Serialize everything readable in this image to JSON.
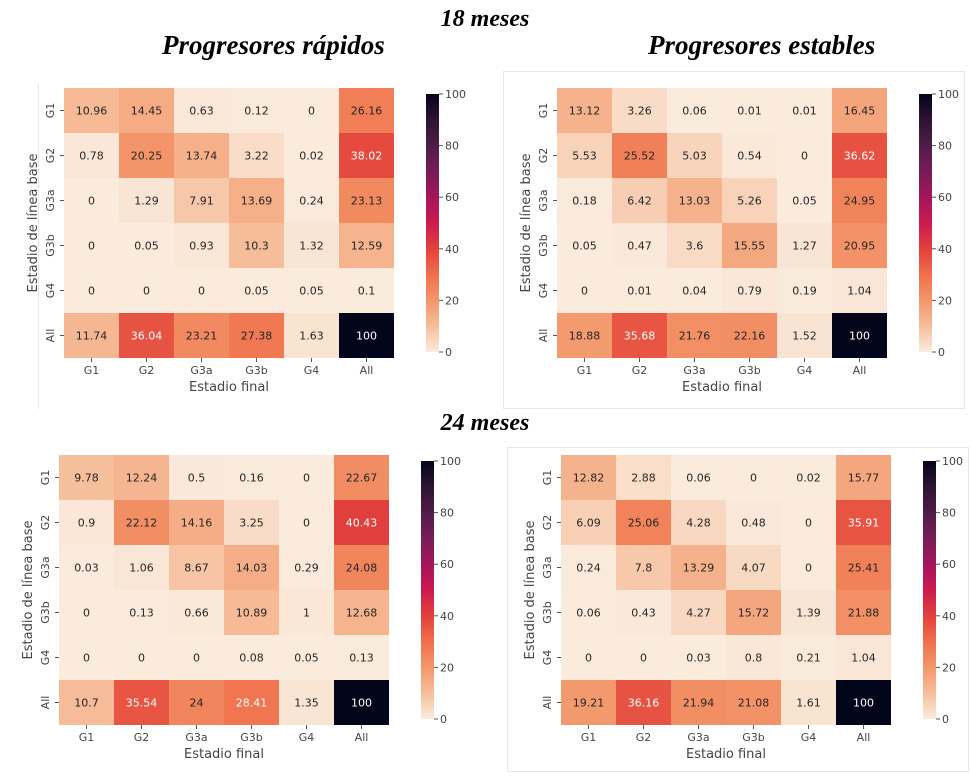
{
  "titles": {
    "top": "18 meses",
    "bottom": "24 meses",
    "left_panel": "Progresores rápidos",
    "right_panel": "Progresores estables"
  },
  "chart_data": [
    {
      "type": "heatmap",
      "id": "18m-rapidos",
      "period": "18 meses",
      "title": "Progresores rápidos",
      "xlabel": "Estadio final",
      "ylabel": "Estadio de línea base",
      "x_categories": [
        "G1",
        "G2",
        "G3a",
        "G3b",
        "G4",
        "All"
      ],
      "y_categories": [
        "G1",
        "G2",
        "G3a",
        "G3b",
        "G4",
        "All"
      ],
      "values": [
        [
          10.96,
          14.45,
          0.63,
          0.12,
          0,
          26.16
        ],
        [
          0.78,
          20.25,
          13.74,
          3.22,
          0.02,
          38.02
        ],
        [
          0,
          1.29,
          7.91,
          13.69,
          0.24,
          23.13
        ],
        [
          0,
          0.05,
          0.93,
          10.3,
          1.32,
          12.59
        ],
        [
          0,
          0,
          0,
          0.05,
          0.05,
          0.1
        ],
        [
          11.74,
          36.04,
          23.21,
          27.38,
          1.63,
          100
        ]
      ],
      "colorbar": {
        "range": [
          0,
          100
        ],
        "ticks": [
          0,
          20,
          40,
          60,
          80,
          100
        ],
        "colormap": "rocket_r"
      }
    },
    {
      "type": "heatmap",
      "id": "18m-estables",
      "period": "18 meses",
      "title": "Progresores estables",
      "xlabel": "Estadio final",
      "ylabel": "Estadio de línea base",
      "x_categories": [
        "G1",
        "G2",
        "G3a",
        "G3b",
        "G4",
        "All"
      ],
      "y_categories": [
        "G1",
        "G2",
        "G3a",
        "G3b",
        "G4",
        "All"
      ],
      "values": [
        [
          13.12,
          3.26,
          0.06,
          0.01,
          0.01,
          16.45
        ],
        [
          5.53,
          25.52,
          5.03,
          0.54,
          0,
          36.62
        ],
        [
          0.18,
          6.42,
          13.03,
          5.26,
          0.05,
          24.95
        ],
        [
          0.05,
          0.47,
          3.6,
          15.55,
          1.27,
          20.95
        ],
        [
          0,
          0.01,
          0.04,
          0.79,
          0.19,
          1.04
        ],
        [
          18.88,
          35.68,
          21.76,
          22.16,
          1.52,
          100
        ]
      ],
      "colorbar": {
        "range": [
          0,
          100
        ],
        "ticks": [
          0,
          20,
          40,
          60,
          80,
          100
        ],
        "colormap": "rocket_r"
      }
    },
    {
      "type": "heatmap",
      "id": "24m-rapidos",
      "period": "24 meses",
      "title": "Progresores rápidos",
      "xlabel": "Estadio final",
      "ylabel": "Estadio de línea base",
      "x_categories": [
        "G1",
        "G2",
        "G3a",
        "G3b",
        "G4",
        "All"
      ],
      "y_categories": [
        "G1",
        "G2",
        "G3a",
        "G3b",
        "G4",
        "All"
      ],
      "values": [
        [
          9.78,
          12.24,
          0.5,
          0.16,
          0,
          22.67
        ],
        [
          0.9,
          22.12,
          14.16,
          3.25,
          0,
          40.43
        ],
        [
          0.03,
          1.06,
          8.67,
          14.03,
          0.29,
          24.08
        ],
        [
          0,
          0.13,
          0.66,
          10.89,
          1,
          12.68
        ],
        [
          0,
          0,
          0,
          0.08,
          0.05,
          0.13
        ],
        [
          10.7,
          35.54,
          24,
          28.41,
          1.35,
          100
        ]
      ],
      "colorbar": {
        "range": [
          0,
          100
        ],
        "ticks": [
          0,
          20,
          40,
          60,
          80,
          100
        ],
        "colormap": "rocket_r"
      }
    },
    {
      "type": "heatmap",
      "id": "24m-estables",
      "period": "24 meses",
      "title": "Progresores estables",
      "xlabel": "Estadio final",
      "ylabel": "Estadio de línea base",
      "x_categories": [
        "G1",
        "G2",
        "G3a",
        "G3b",
        "G4",
        "All"
      ],
      "y_categories": [
        "G1",
        "G2",
        "G3a",
        "G3b",
        "G4",
        "All"
      ],
      "values": [
        [
          12.82,
          2.88,
          0.06,
          0,
          0.02,
          15.77
        ],
        [
          6.09,
          25.06,
          4.28,
          0.48,
          0,
          35.91
        ],
        [
          0.24,
          7.8,
          13.29,
          4.07,
          0,
          25.41
        ],
        [
          0.06,
          0.43,
          4.27,
          15.72,
          1.39,
          21.88
        ],
        [
          0,
          0,
          0.03,
          0.8,
          0.21,
          1.04
        ],
        [
          19.21,
          36.16,
          21.94,
          21.08,
          1.61,
          100
        ]
      ],
      "colorbar": {
        "range": [
          0,
          100
        ],
        "ticks": [
          0,
          20,
          40,
          60,
          80,
          100
        ],
        "colormap": "rocket_r"
      }
    }
  ]
}
